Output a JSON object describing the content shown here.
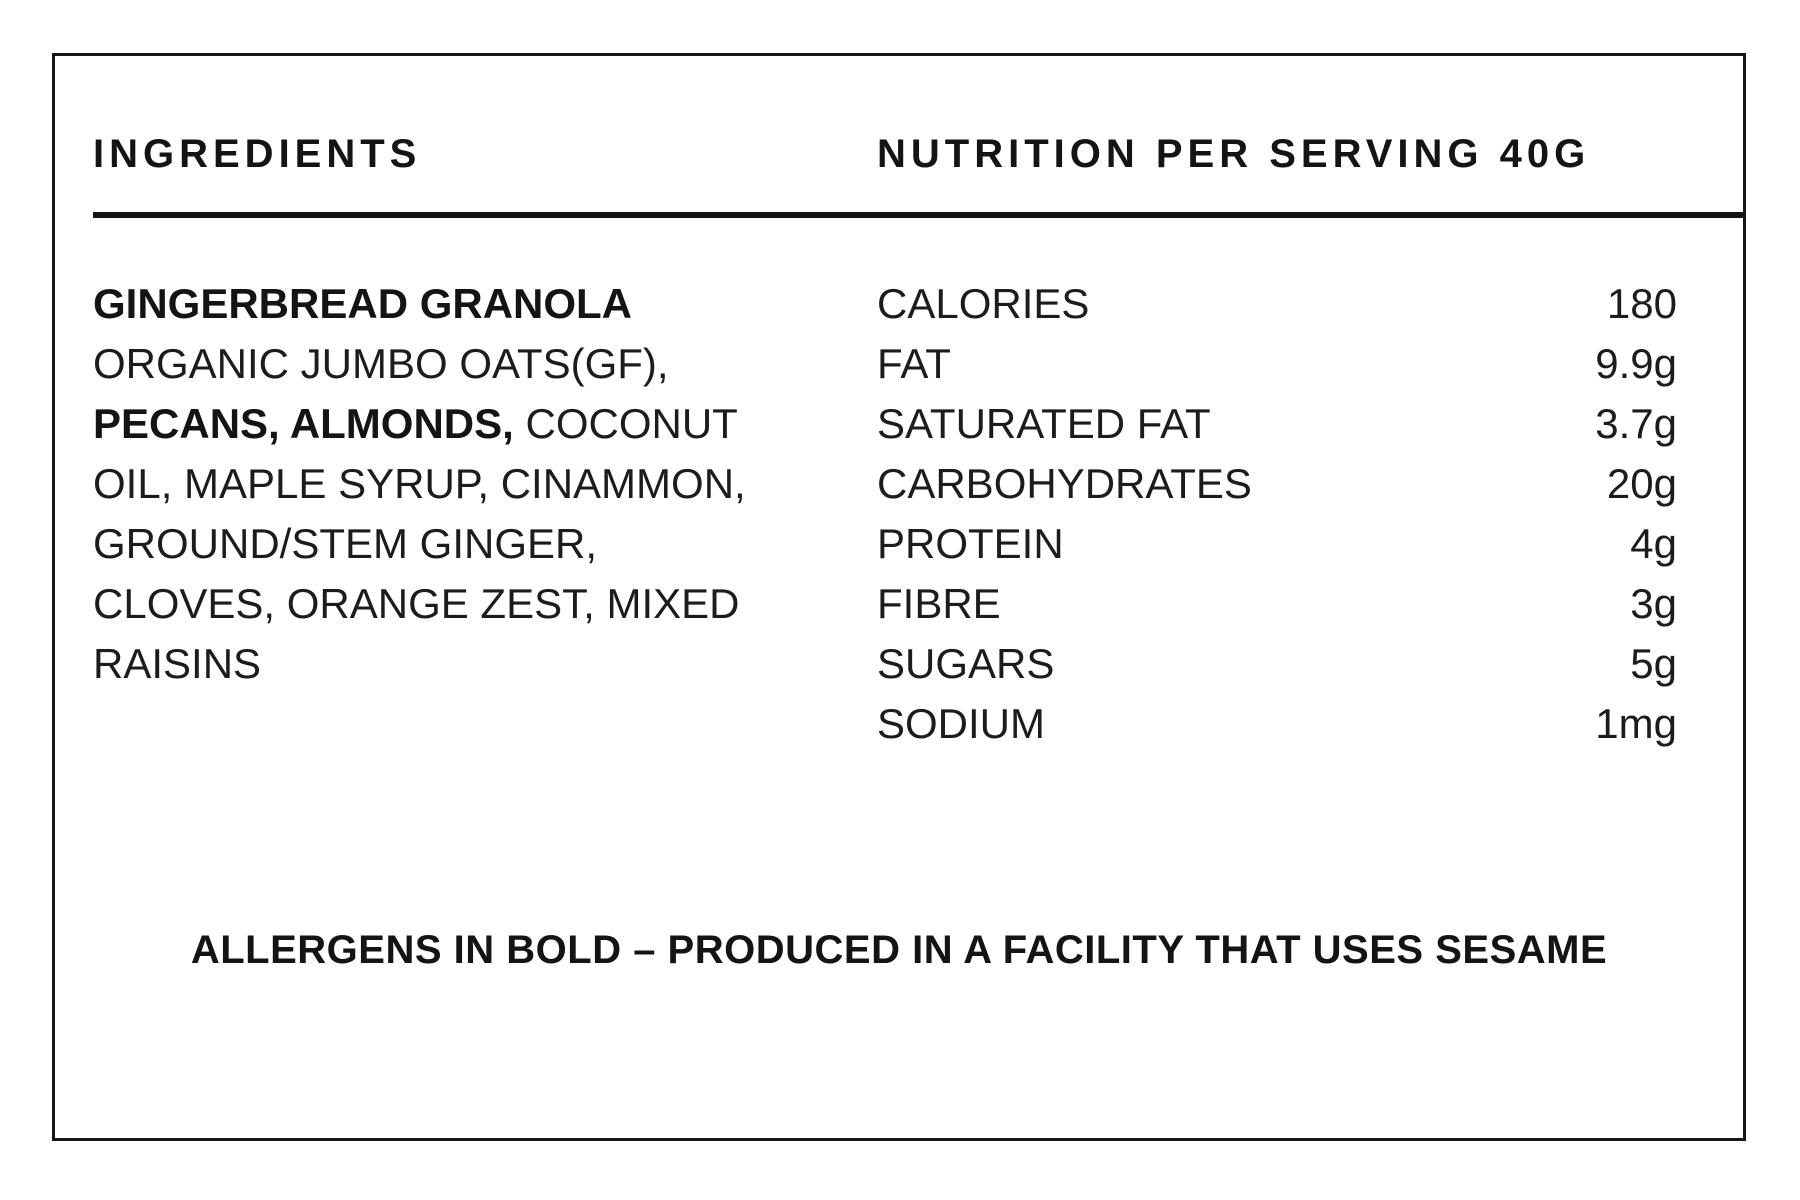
{
  "colors": {
    "ink": "#161616",
    "background": "#ffffff"
  },
  "header": {
    "ingredients_title": "INGREDIENTS",
    "nutrition_title": "NUTRITION PER SERVING 40G"
  },
  "ingredients": {
    "lines": [
      {
        "parts": [
          {
            "text": "GINGERBREAD GRANOLA",
            "bold": true
          }
        ]
      },
      {
        "parts": [
          {
            "text": "ORGANIC JUMBO OATS(GF),",
            "bold": false
          }
        ]
      },
      {
        "parts": [
          {
            "text": "PECANS, ALMONDS,",
            "bold": true
          },
          {
            "text": " COCONUT",
            "bold": false
          }
        ]
      },
      {
        "parts": [
          {
            "text": "OIL, MAPLE SYRUP, CINAMMON,",
            "bold": false
          }
        ]
      },
      {
        "parts": [
          {
            "text": "GROUND/STEM GINGER,",
            "bold": false
          }
        ]
      },
      {
        "parts": [
          {
            "text": "CLOVES, ORANGE ZEST, MIXED",
            "bold": false
          }
        ]
      },
      {
        "parts": [
          {
            "text": "RAISINS",
            "bold": false
          }
        ]
      }
    ]
  },
  "nutrition": {
    "serving_size": "40G",
    "rows": [
      {
        "name": "CALORIES",
        "value": "180"
      },
      {
        "name": "FAT",
        "value": "9.9g"
      },
      {
        "name": "SATURATED FAT",
        "value": "3.7g"
      },
      {
        "name": "CARBOHYDRATES",
        "value": "20g"
      },
      {
        "name": "PROTEIN",
        "value": "4g"
      },
      {
        "name": "FIBRE",
        "value": "3g"
      },
      {
        "name": "SUGARS",
        "value": "5g"
      },
      {
        "name": "SODIUM",
        "value": "1mg"
      }
    ]
  },
  "footer": {
    "allergen_note": "ALLERGENS IN BOLD – PRODUCED IN A FACILITY THAT USES SESAME"
  }
}
